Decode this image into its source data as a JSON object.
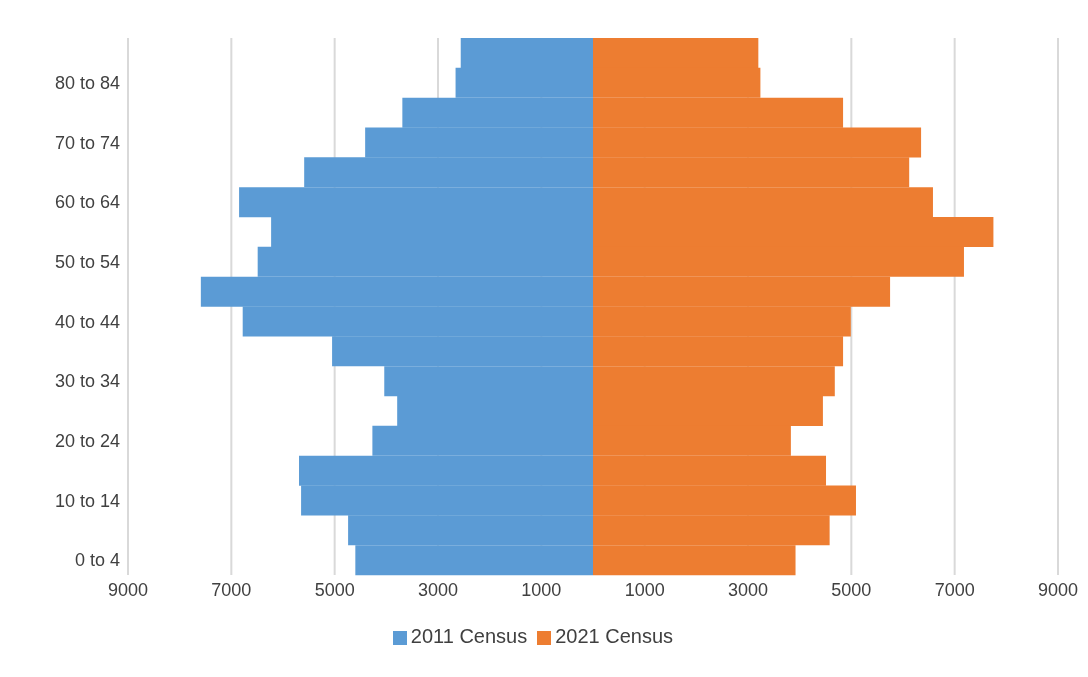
{
  "chart_data": {
    "type": "bar",
    "orientation": "horizontal",
    "stacked": true,
    "categories": [
      null,
      "80 to 84",
      null,
      "70 to 74",
      null,
      "60 to 64",
      null,
      "50 to 54",
      null,
      "40 to 44",
      null,
      "30 to 34",
      null,
      "20 to 24",
      null,
      "10 to 14",
      null,
      "0 to 4"
    ],
    "series": [
      {
        "name": "2011 Census",
        "color": "#5b9bd5",
        "values": [
          -2560,
          -2660,
          -3690,
          -4410,
          -5590,
          -6850,
          -6230,
          -6490,
          -7590,
          -6780,
          -5050,
          -4040,
          -3790,
          -4270,
          -5690,
          -5650,
          -4740,
          -4600
        ]
      },
      {
        "name": "2021 Census",
        "color": "#ed7d31",
        "values": [
          3200,
          3240,
          4840,
          6350,
          6120,
          6580,
          7750,
          7180,
          5750,
          4990,
          4840,
          4680,
          4450,
          3830,
          4510,
          5090,
          4580,
          3920
        ]
      }
    ],
    "xlim": [
      -9000,
      9000
    ],
    "xticks": [
      {
        "value": -9000,
        "label": "9000"
      },
      {
        "value": -7000,
        "label": "7000"
      },
      {
        "value": -5000,
        "label": "5000"
      },
      {
        "value": -3000,
        "label": "3000"
      },
      {
        "value": -1000,
        "label": "1000"
      },
      1000,
      3000,
      5000,
      7000,
      9000
    ],
    "grid": "x",
    "legend": "bottom"
  }
}
